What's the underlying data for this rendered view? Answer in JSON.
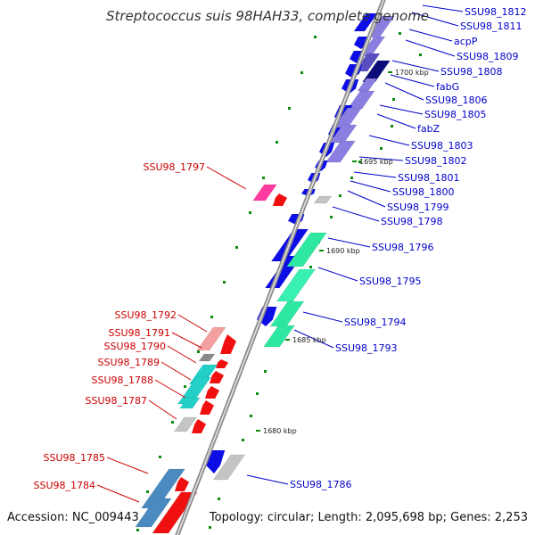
{
  "title": "Streptococcus suis 98HAH33, complete genome",
  "footer": {
    "accession": "Accession: NC_009443",
    "summary": "Topology: circular; Length: 2,095,698 bp; Genes: 2,253"
  },
  "colors": {
    "backbone": "#8c8c8c",
    "forward_label": "#0000cc",
    "reverse_label": "#cc0000",
    "tick": "#0a8a0a"
  },
  "scale_labels": [
    "1700 kbp",
    "1695 kbp",
    "1690 kbp",
    "1685 kbp",
    "1680 kbp"
  ],
  "forward_genes": [
    "SSU98_1812",
    "SSU98_1811",
    "acpP",
    "SSU98_1809",
    "SSU98_1808",
    "fabG",
    "SSU98_1806",
    "SSU98_1805",
    "fabZ",
    "SSU98_1803",
    "SSU98_1802",
    "SSU98_1801",
    "SSU98_1800",
    "SSU98_1799",
    "SSU98_1798",
    "SSU98_1796",
    "SSU98_1795",
    "SSU98_1794",
    "SSU98_1793",
    "SSU98_1786"
  ],
  "reverse_genes": [
    "SSU98_1797",
    "SSU98_1792",
    "SSU98_1791",
    "SSU98_1790",
    "SSU98_1789",
    "SSU98_1788",
    "SSU98_1787",
    "SSU98_1785",
    "SSU98_1784"
  ]
}
